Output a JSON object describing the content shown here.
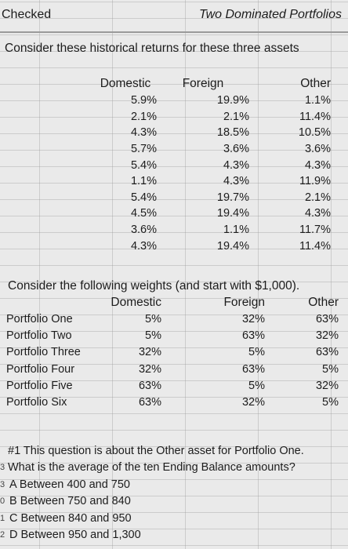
{
  "header": {
    "left": "Checked",
    "right": "Two Dominated Portfolios"
  },
  "intro": "Consider these historical returns for these three assets",
  "returns": {
    "columns": [
      "Domestic",
      "Foreign",
      "Other"
    ],
    "rows": [
      [
        "5.9%",
        "19.9%",
        "1.1%"
      ],
      [
        "2.1%",
        "2.1%",
        "11.4%"
      ],
      [
        "4.3%",
        "18.5%",
        "10.5%"
      ],
      [
        "5.7%",
        "3.6%",
        "3.6%"
      ],
      [
        "5.4%",
        "4.3%",
        "4.3%"
      ],
      [
        "1.1%",
        "4.3%",
        "11.9%"
      ],
      [
        "5.4%",
        "19.7%",
        "2.1%"
      ],
      [
        "4.5%",
        "19.4%",
        "4.3%"
      ],
      [
        "3.6%",
        "1.1%",
        "11.7%"
      ],
      [
        "4.3%",
        "19.4%",
        "11.4%"
      ]
    ]
  },
  "weights": {
    "intro": "Consider the following weights (and start with $1,000).",
    "columns": [
      "Domestic",
      "Foreign",
      "Other"
    ],
    "rows": [
      {
        "name": "Portfolio One",
        "values": [
          "5%",
          "32%",
          "63%"
        ]
      },
      {
        "name": "Portfolio Two",
        "values": [
          "5%",
          "63%",
          "32%"
        ]
      },
      {
        "name": "Portfolio Three",
        "values": [
          "32%",
          "5%",
          "63%"
        ]
      },
      {
        "name": "Portfolio Four",
        "values": [
          "32%",
          "63%",
          "5%"
        ]
      },
      {
        "name": "Portfolio Five",
        "values": [
          "63%",
          "5%",
          "32%"
        ]
      },
      {
        "name": "Portfolio Six",
        "values": [
          "63%",
          "32%",
          "5%"
        ]
      }
    ]
  },
  "question": {
    "line1": "#1 This question is about the Other asset for Portfolio One.",
    "line2": "What is the average of the ten Ending Balance amounts?",
    "options": [
      {
        "gutter": "3",
        "text": "A Between 400 and 750"
      },
      {
        "gutter": "0",
        "text": "B Between 750 and 840"
      },
      {
        "gutter": "1",
        "text": "C Between 840 and 950"
      },
      {
        "gutter": "2",
        "text": "D Between 950 and 1,300"
      }
    ],
    "line2_gutter": "3"
  }
}
